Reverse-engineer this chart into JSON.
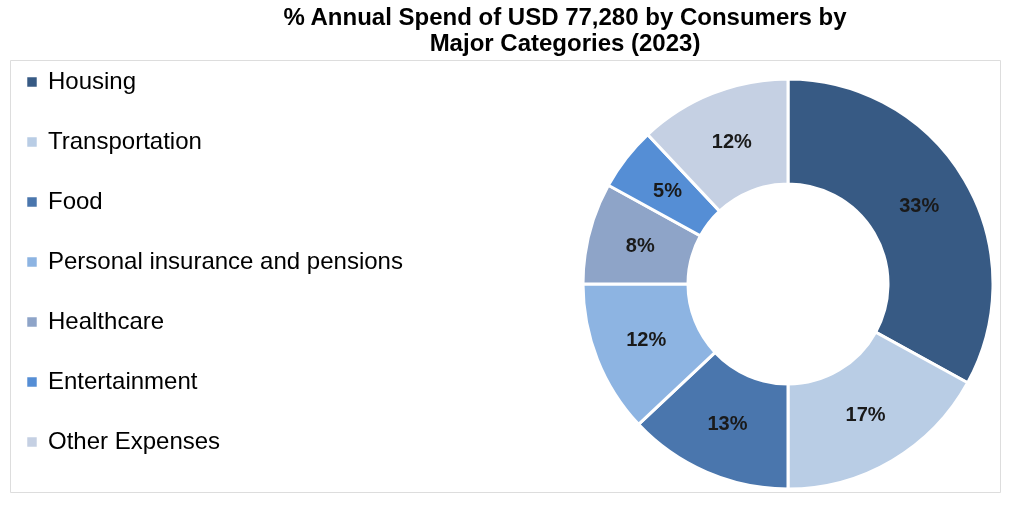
{
  "chart_data": {
    "type": "donut",
    "title": [
      "% Annual Spend of USD 77,280 by Consumers by",
      "Major Categories (2023)"
    ],
    "categories": [
      "Housing",
      "Transportation",
      "Food",
      "Personal insurance and pensions",
      "Healthcare",
      "Entertainment",
      "Other Expenses"
    ],
    "values": [
      33,
      17,
      13,
      12,
      8,
      5,
      12
    ],
    "colors": [
      "#375a84",
      "#b9cde5",
      "#4a76ad",
      "#8db4e2",
      "#8ea4c8",
      "#558ed5",
      "#c5d0e3"
    ],
    "value_labels": [
      "33%",
      "17%",
      "13%",
      "12%",
      "8%",
      "5%",
      "12%"
    ],
    "legend": "left"
  }
}
